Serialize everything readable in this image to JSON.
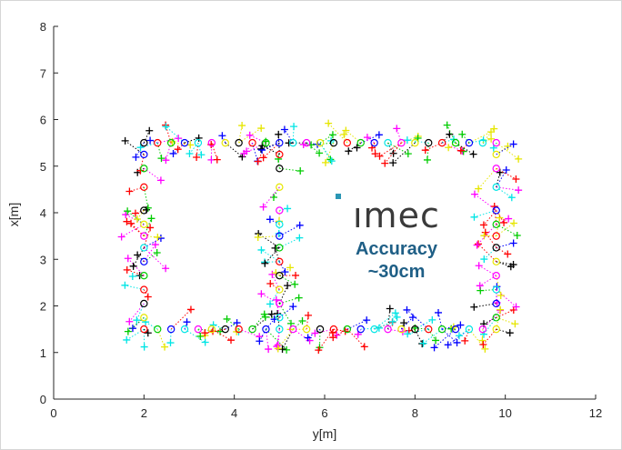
{
  "chart_data": {
    "type": "scatter",
    "title": "",
    "xlabel": "y[m]",
    "ylabel": "x[m]",
    "xlim": [
      0,
      12
    ],
    "ylim": [
      0,
      8
    ],
    "xticks": [
      "0",
      "2",
      "4",
      "6",
      "8",
      "10",
      "12"
    ],
    "yticks": [
      "0",
      "1",
      "2",
      "3",
      "4",
      "5",
      "6",
      "7",
      "8"
    ],
    "grid": false,
    "marker_colors": [
      "#ff0000",
      "#00cc00",
      "#0000ff",
      "#00e5e5",
      "#ff00ff",
      "#e6e600",
      "#000000"
    ],
    "reference_marker": "circle",
    "estimate_marker": "plus",
    "series": [
      {
        "values_x": [
          2.0,
          2.3,
          2.6,
          2.9,
          3.2,
          3.5,
          3.8,
          4.1,
          4.4,
          4.7,
          5.0,
          5.3,
          5.6,
          5.9,
          6.2,
          6.5,
          6.8,
          7.1,
          7.4,
          7.7,
          8.0,
          8.3,
          8.6,
          8.9,
          9.2,
          9.5,
          9.8,
          2.0,
          2.3,
          2.6,
          2.9,
          3.2,
          3.5,
          3.8,
          4.1,
          4.4,
          4.7,
          5.0,
          5.3,
          5.6,
          5.9,
          6.2,
          6.5,
          6.8,
          7.1,
          7.4,
          7.7,
          8.0,
          8.3,
          8.6,
          8.9,
          9.2,
          9.5,
          9.8,
          2.0,
          2.0,
          2.0,
          2.0,
          2.0,
          2.0,
          2.0,
          2.0,
          2.0,
          2.0,
          2.0,
          2.0,
          5.0,
          5.0,
          5.0,
          5.0,
          5.0,
          5.0,
          5.0,
          5.0,
          5.0,
          5.0,
          5.0,
          5.0,
          9.8,
          9.8,
          9.8,
          9.8,
          9.8,
          9.8,
          9.8,
          9.8,
          9.8,
          9.8,
          9.8,
          9.8
        ],
        "values_y": [
          1.5,
          1.5,
          1.5,
          1.5,
          1.5,
          1.5,
          1.5,
          1.5,
          1.5,
          1.5,
          1.5,
          1.5,
          1.5,
          1.5,
          1.5,
          1.5,
          1.5,
          1.5,
          1.5,
          1.5,
          1.5,
          1.5,
          1.5,
          1.5,
          1.5,
          1.5,
          1.5,
          5.5,
          5.5,
          5.5,
          5.5,
          5.5,
          5.5,
          5.5,
          5.5,
          5.5,
          5.5,
          5.5,
          5.5,
          5.5,
          5.5,
          5.5,
          5.5,
          5.5,
          5.5,
          5.5,
          5.5,
          5.5,
          5.5,
          5.5,
          5.5,
          5.5,
          5.5,
          5.5,
          1.75,
          2.05,
          2.35,
          2.65,
          2.95,
          3.25,
          3.5,
          3.75,
          4.05,
          4.55,
          4.95,
          5.25,
          1.75,
          2.05,
          2.35,
          2.65,
          2.95,
          3.25,
          3.5,
          3.75,
          4.05,
          4.55,
          4.95,
          5.25,
          1.75,
          2.05,
          2.35,
          2.65,
          2.95,
          3.25,
          3.5,
          3.75,
          4.05,
          4.55,
          4.95,
          5.25
        ]
      }
    ]
  },
  "logo": {
    "brand": "ımec"
  },
  "annotation": {
    "line1": "Accuracy",
    "line2": "~30cm"
  }
}
